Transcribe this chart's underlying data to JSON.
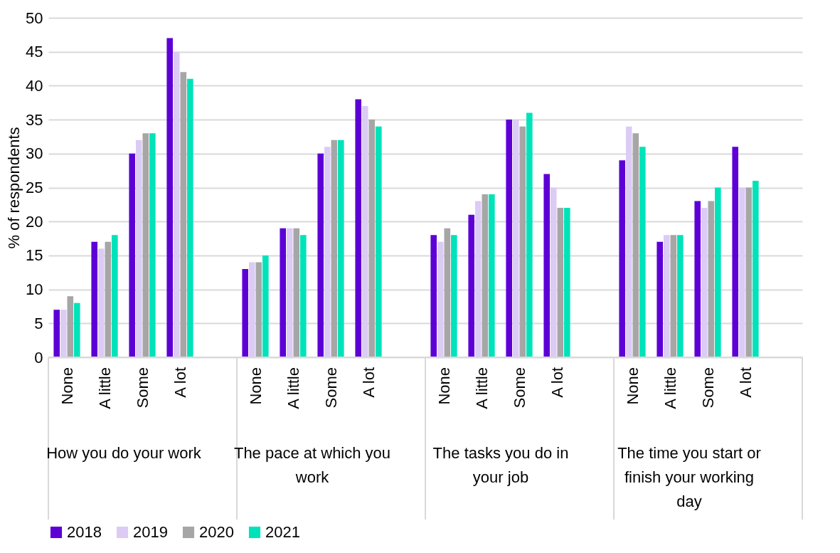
{
  "chart_data": {
    "type": "bar",
    "ylabel": "% of respondents",
    "categories": [
      "None",
      "A little",
      "Some",
      "A lot",
      "None",
      "A little",
      "Some",
      "A lot",
      "None",
      "A little",
      "Some",
      "A lot",
      "None",
      "A little",
      "Some",
      "A lot"
    ],
    "annotations": [
      "How you do your work",
      "The pace at which you work",
      "The tasks you do in your job",
      "The time you start or finish your working day"
    ],
    "series": [
      {
        "name": "2018",
        "color": "#5c00d6",
        "values": [
          7,
          17,
          30,
          47,
          13,
          19,
          30,
          38,
          18,
          21,
          35,
          27,
          29,
          17,
          23,
          31
        ]
      },
      {
        "name": "2019",
        "color": "#dccbf5",
        "values": [
          7,
          16,
          32,
          45,
          14,
          19,
          31,
          37,
          17,
          23,
          35,
          25,
          34,
          18,
          22,
          25
        ]
      },
      {
        "name": "2020",
        "color": "#a6a6a6",
        "values": [
          9,
          17,
          33,
          42,
          14,
          19,
          32,
          35,
          19,
          24,
          34,
          22,
          33,
          18,
          23,
          25
        ]
      },
      {
        "name": "2021",
        "color": "#00e3ba",
        "values": [
          8,
          18,
          33,
          41,
          15,
          18,
          32,
          34,
          18,
          24,
          36,
          22,
          31,
          18,
          25,
          26
        ]
      }
    ],
    "ylim": [
      0,
      50
    ],
    "yticks": [
      0,
      5,
      10,
      15,
      20,
      25,
      30,
      35,
      40,
      45,
      50
    ],
    "grid": "y",
    "legend": "bottom"
  }
}
